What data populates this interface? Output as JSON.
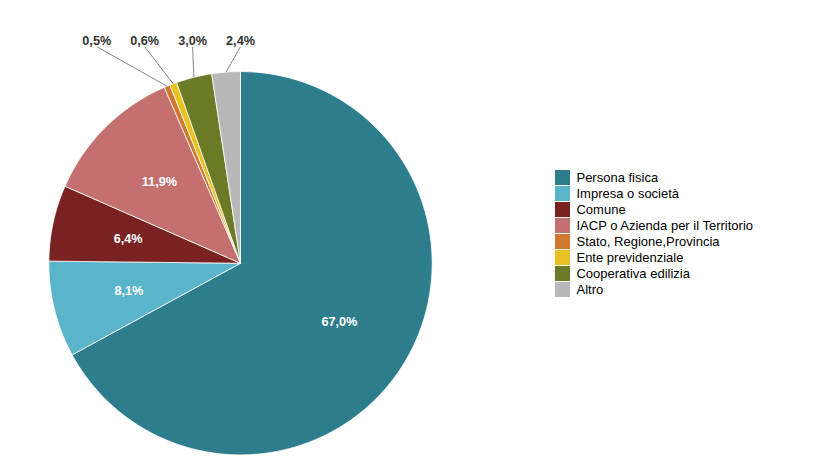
{
  "chart_data": {
    "type": "pie",
    "categories": [
      "Persona fisica",
      "Impresa o società",
      "Comune",
      "IACP o Azienda per il Territorio",
      "Stato, Regione,Provincia",
      "Ente previdenziale",
      "Cooperativa edilizia",
      "Altro"
    ],
    "values": [
      67.0,
      8.1,
      6.4,
      11.9,
      0.5,
      0.6,
      3.0,
      2.4
    ],
    "value_labels": [
      "67,0%",
      "8,1%",
      "6,4%",
      "11,9%",
      "0,5%",
      "0,6%",
      "3,0%",
      "2,4%"
    ],
    "colors": [
      "#2d7d8c",
      "#5ab4ca",
      "#7a2222",
      "#c47070",
      "#d07830",
      "#e8c020",
      "#6b7a25",
      "#b8b8b8"
    ],
    "data_labels": true,
    "legend": "right"
  }
}
